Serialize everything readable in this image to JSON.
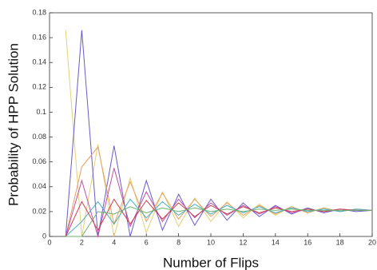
{
  "chart_data": {
    "type": "line",
    "x_label": "Number of Flips",
    "y_label": "Probability of HPP Solution",
    "x": [
      1,
      2,
      3,
      4,
      5,
      6,
      7,
      8,
      9,
      10,
      11,
      12,
      13,
      14,
      15,
      16,
      17,
      18,
      19,
      20
    ],
    "xlim": [
      0,
      20
    ],
    "xticks": [
      0,
      2,
      4,
      6,
      8,
      10,
      12,
      14,
      16,
      18,
      20
    ],
    "ylim": [
      0,
      0.18
    ],
    "yticks": [
      0,
      0.02,
      0.04,
      0.06,
      0.08,
      0.1,
      0.12,
      0.14,
      0.16,
      0.18
    ],
    "grid": false,
    "series": [
      {
        "color": "#e6cf74",
        "values": [
          0.166,
          0,
          0.074,
          0,
          0.047,
          0.003,
          0.036,
          0.008,
          0.031,
          0.012,
          0.028,
          0.015,
          0.026,
          0.017,
          0.024,
          0.019,
          0.023,
          0.02,
          0.022,
          0.021
        ]
      },
      {
        "color": "#6a5acd",
        "values": [
          0,
          0.166,
          0,
          0.073,
          0,
          0.045,
          0.005,
          0.034,
          0.009,
          0.03,
          0.013,
          0.027,
          0.016,
          0.025,
          0.018,
          0.023,
          0.019,
          0.022,
          0.02,
          0.021
        ]
      },
      {
        "color": "#e8a060",
        "values": [
          0,
          0.056,
          0.072,
          0.01,
          0.044,
          0.012,
          0.035,
          0.014,
          0.03,
          0.016,
          0.027,
          0.017,
          0.025,
          0.018,
          0.024,
          0.019,
          0.023,
          0.02,
          0.022,
          0.021
        ]
      },
      {
        "color": "#c050a0",
        "values": [
          0,
          0.045,
          0,
          0.055,
          0.008,
          0.036,
          0.012,
          0.03,
          0.015,
          0.027,
          0.017,
          0.025,
          0.018,
          0.024,
          0.019,
          0.022,
          0.02,
          0.022,
          0.021,
          0.021
        ]
      },
      {
        "color": "#40b0c8",
        "values": [
          0,
          0.012,
          0.028,
          0.01,
          0.03,
          0.015,
          0.028,
          0.017,
          0.026,
          0.018,
          0.025,
          0.019,
          0.024,
          0.019,
          0.023,
          0.02,
          0.022,
          0.02,
          0.022,
          0.021
        ]
      },
      {
        "color": "#d04050",
        "values": [
          0,
          0.028,
          0.005,
          0.03,
          0.01,
          0.029,
          0.014,
          0.027,
          0.016,
          0.025,
          0.018,
          0.024,
          0.019,
          0.023,
          0.02,
          0.022,
          0.02,
          0.022,
          0.021,
          0.021
        ]
      },
      {
        "color": "#70b070",
        "values": [
          0,
          0,
          0.02,
          0.018,
          0.024,
          0.019,
          0.023,
          0.02,
          0.023,
          0.02,
          0.022,
          0.02,
          0.022,
          0.021,
          0.022,
          0.021,
          0.021,
          0.021,
          0.021,
          0.021
        ]
      }
    ]
  }
}
